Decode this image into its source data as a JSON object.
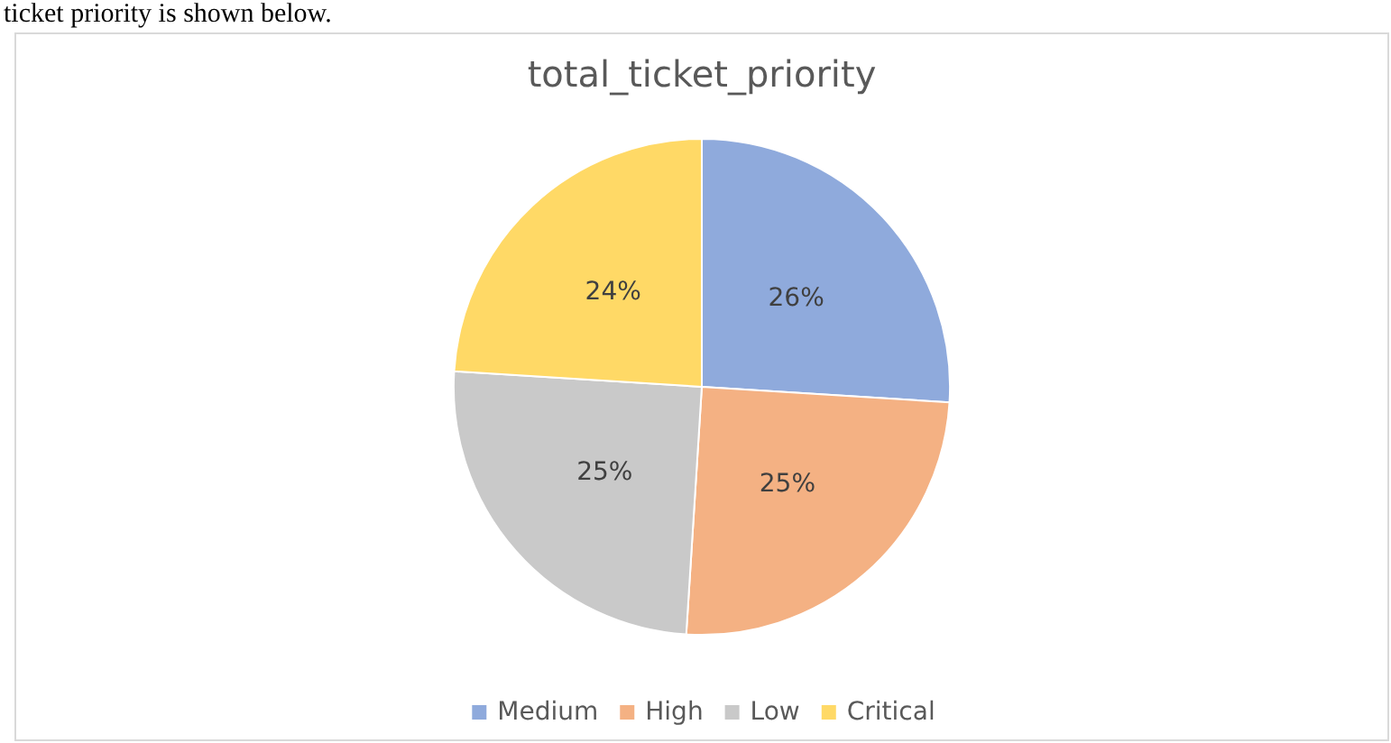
{
  "chart_data": {
    "type": "pie",
    "title": "total_ticket_priority",
    "annotations": [
      "ticket priority is shown below."
    ],
    "categories": [
      "Medium",
      "High",
      "Low",
      "Critical"
    ],
    "values": [
      26,
      25,
      25,
      24
    ],
    "value_labels": [
      "26%",
      "25%",
      "25%",
      "24%"
    ],
    "colors": [
      "#8faadc",
      "#f4b183",
      "#c9c9c9",
      "#ffd966"
    ],
    "legend": "bottom"
  }
}
